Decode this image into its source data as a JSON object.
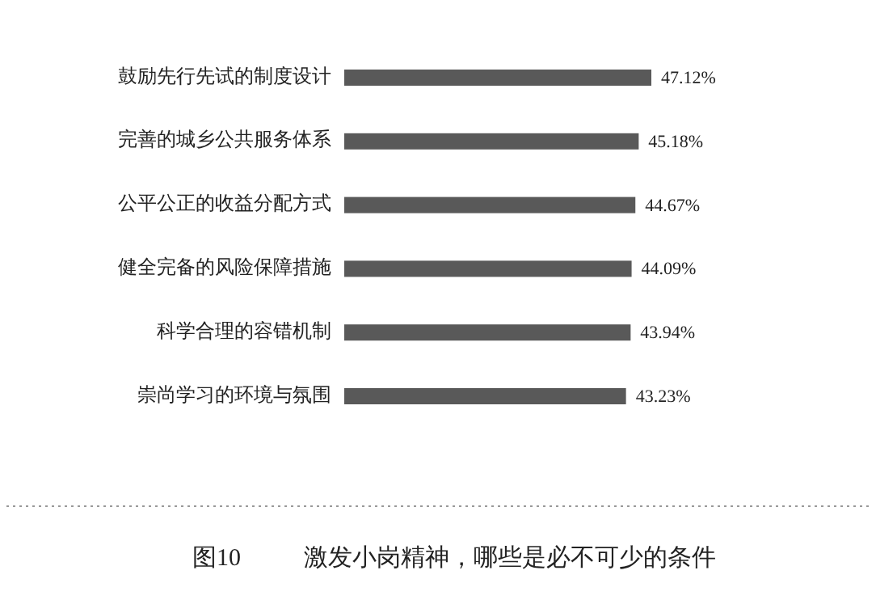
{
  "chart_data": {
    "type": "bar",
    "orientation": "horizontal",
    "title": "激发小岗精神，哪些是必不可少的条件",
    "categories": [
      "鼓励先行先试的制度设计",
      "完善的城乡公共服务体系",
      "公平公正的收益分配方式",
      "健全完备的风险保障措施",
      "科学合理的容错机制",
      "崇尚学习的环境与氛围"
    ],
    "values": [
      47.12,
      45.18,
      44.67,
      44.09,
      43.94,
      43.23
    ],
    "value_labels": [
      "47.12%",
      "45.18%",
      "44.67%",
      "44.09%",
      "43.94%",
      "43.23%"
    ],
    "color": "#595959",
    "annotations": [
      "图10"
    ]
  }
}
